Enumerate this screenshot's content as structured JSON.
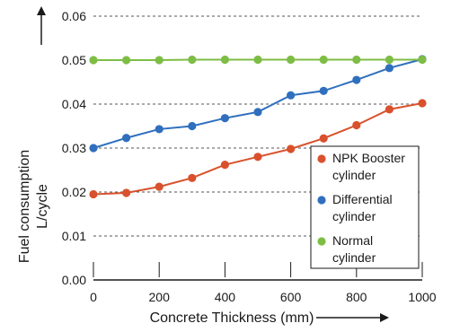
{
  "chart_data": {
    "type": "line",
    "xlabel": "Concrete Thickness (mm)",
    "ylabel": "Fuel consumption L/cycle",
    "ylabel_lines": [
      "Fuel consumption",
      "L/cycle"
    ],
    "xlim": [
      0,
      1000
    ],
    "ylim": [
      0,
      0.06
    ],
    "x_ticks": [
      0,
      200,
      400,
      600,
      800,
      1000
    ],
    "x_tick_labels": [
      "0",
      "200",
      "400",
      "600",
      "800",
      "1000"
    ],
    "y_ticks": [
      0,
      0.01,
      0.02,
      0.03,
      0.04,
      0.05,
      0.06
    ],
    "y_tick_labels": [
      "0.00",
      "0.01",
      "0.02",
      "0.03",
      "0.04",
      "0.05",
      "0.06"
    ],
    "grid": "horizontal-dashed",
    "legend_position": "bottom-right",
    "series": [
      {
        "name": "NPK Booster cylinder",
        "legend_lines": [
          "NPK Booster",
          "cylinder"
        ],
        "color": "#d9512c",
        "x": [
          0,
          100,
          200,
          300,
          400,
          500,
          600,
          700,
          800,
          900,
          1000
        ],
        "y": [
          0.0195,
          0.0198,
          0.0212,
          0.0232,
          0.0262,
          0.028,
          0.0298,
          0.0322,
          0.0352,
          0.0388,
          0.0402
        ]
      },
      {
        "name": "Differential cylinder",
        "legend_lines": [
          "Differential",
          "cylinder"
        ],
        "color": "#2f6fbd",
        "x": [
          0,
          100,
          200,
          300,
          400,
          500,
          600,
          700,
          800,
          900,
          1000
        ],
        "y": [
          0.03,
          0.0323,
          0.0343,
          0.035,
          0.0368,
          0.0382,
          0.042,
          0.043,
          0.0455,
          0.0482,
          0.0502
        ]
      },
      {
        "name": "Normal cylinder",
        "legend_lines": [
          "Normal",
          "cylinder"
        ],
        "color": "#7dbd45",
        "x": [
          0,
          100,
          200,
          300,
          400,
          500,
          600,
          700,
          800,
          900,
          1000
        ],
        "y": [
          0.05,
          0.05,
          0.05,
          0.0501,
          0.0501,
          0.0501,
          0.0501,
          0.0501,
          0.0501,
          0.0501,
          0.0501
        ]
      }
    ]
  }
}
